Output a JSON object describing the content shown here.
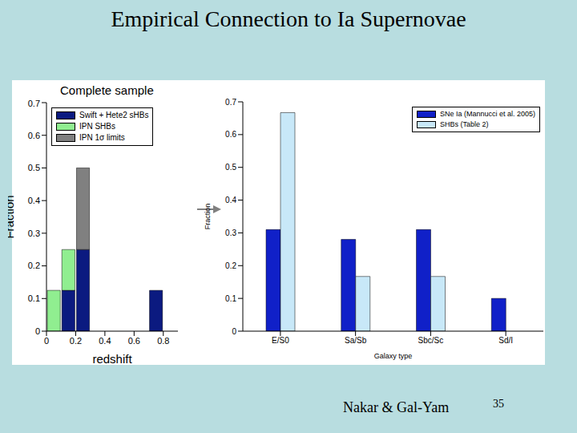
{
  "title": "Empirical Connection to Ia Supernovae",
  "footer": "Nakar & Gal-Yam",
  "page_number": 35,
  "chart_data": [
    {
      "type": "histogram",
      "title": "Complete sample",
      "x_label": "redshift",
      "y_label": "Fraction",
      "bins": [
        0,
        0.1,
        0.2,
        0.3,
        0.4,
        0.5,
        0.6,
        0.7,
        0.8
      ],
      "series": [
        {
          "name": "Swift + Hete2 sHBs",
          "color": "#0b1a80",
          "values": [
            0,
            0.125,
            0.25,
            0,
            0,
            0,
            0,
            0.125
          ]
        },
        {
          "name": "IPN SHBs",
          "color": "#90ee90",
          "values": [
            0.125,
            0.125,
            0,
            0,
            0,
            0,
            0,
            0
          ]
        },
        {
          "name": "IPN 1σ limits",
          "color": "#808080",
          "values": [
            0,
            0,
            0.25,
            0,
            0,
            0,
            0,
            0
          ]
        }
      ],
      "stacked": true,
      "xlim": [
        0,
        0.9
      ],
      "xticks": [
        0,
        0.2,
        0.4,
        0.6,
        0.8
      ],
      "ylim": [
        0,
        0.7
      ],
      "yticks": [
        0,
        0.1,
        0.2,
        0.3,
        0.4,
        0.5,
        0.6,
        0.7
      ],
      "legend": "upper left",
      "grid": false
    },
    {
      "type": "bar",
      "x_label": "Galaxy type",
      "y_label": "Fraction",
      "categories": [
        "E/S0",
        "Sa/Sb",
        "Sbc/Sc",
        "Sd/I"
      ],
      "series": [
        {
          "name": "SNe Ia (Mannucci et al. 2005)",
          "color": "#1020c8",
          "values": [
            0.31,
            0.28,
            0.31,
            0.1
          ]
        },
        {
          "name": "SHBs (Table 2)",
          "color": "#c8e8f8",
          "values": [
            0.667,
            0.167,
            0.167,
            0
          ]
        }
      ],
      "ylim": [
        0,
        0.7
      ],
      "yticks": [
        0,
        0.1,
        0.2,
        0.3,
        0.4,
        0.5,
        0.6,
        0.7
      ],
      "legend": "upper right",
      "grid": false
    }
  ]
}
